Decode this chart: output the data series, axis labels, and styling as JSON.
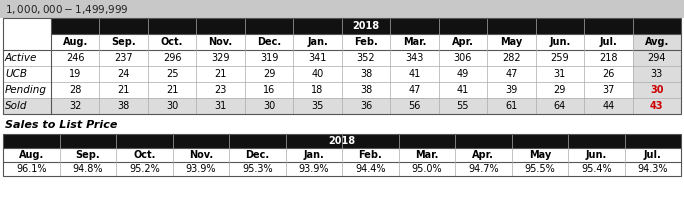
{
  "title": "$1,000,000 - $1,499,999",
  "year_label": "2018",
  "col_headers": [
    "Aug.",
    "Sep.",
    "Oct.",
    "Nov.",
    "Dec.",
    "Jan.",
    "Feb.",
    "Mar.",
    "Apr.",
    "May",
    "Jun.",
    "Jul.",
    "Avg."
  ],
  "row_labels": [
    "Active",
    "UCB",
    "Pending",
    "Sold"
  ],
  "table_data": [
    [
      246,
      237,
      296,
      329,
      319,
      341,
      352,
      343,
      306,
      282,
      259,
      218,
      294
    ],
    [
      19,
      24,
      25,
      21,
      29,
      40,
      38,
      41,
      49,
      47,
      31,
      26,
      33
    ],
    [
      28,
      21,
      21,
      23,
      16,
      18,
      38,
      47,
      41,
      39,
      29,
      37,
      30
    ],
    [
      32,
      38,
      30,
      31,
      30,
      35,
      36,
      56,
      55,
      61,
      64,
      44,
      43
    ]
  ],
  "sales_title": "Sales to List Price",
  "sales_col_headers": [
    "Aug.",
    "Sep.",
    "Oct.",
    "Nov.",
    "Dec.",
    "Jan.",
    "Feb.",
    "Mar.",
    "Apr.",
    "May",
    "Jun.",
    "Jul."
  ],
  "sales_data": [
    "96.1%",
    "94.8%",
    "95.2%",
    "93.9%",
    "95.3%",
    "93.9%",
    "94.4%",
    "95.0%",
    "94.7%",
    "95.5%",
    "95.4%",
    "94.3%"
  ],
  "header_bg": "#111111",
  "header_fg": "#ffffff",
  "title_bg": "#c8c8c8",
  "avg_col_bg": "#dcdcdc",
  "sold_row_bg": "#dcdcdc",
  "pending_avg_color": "#cc0000",
  "sold_avg_color": "#cc0000",
  "white_bg": "#ffffff",
  "border_color": "#555555",
  "inner_line_color": "#aaaaaa",
  "title_fontsize": 7.5,
  "header_fontsize": 7.0,
  "data_fontsize": 7.0,
  "row_label_fontsize": 7.5
}
